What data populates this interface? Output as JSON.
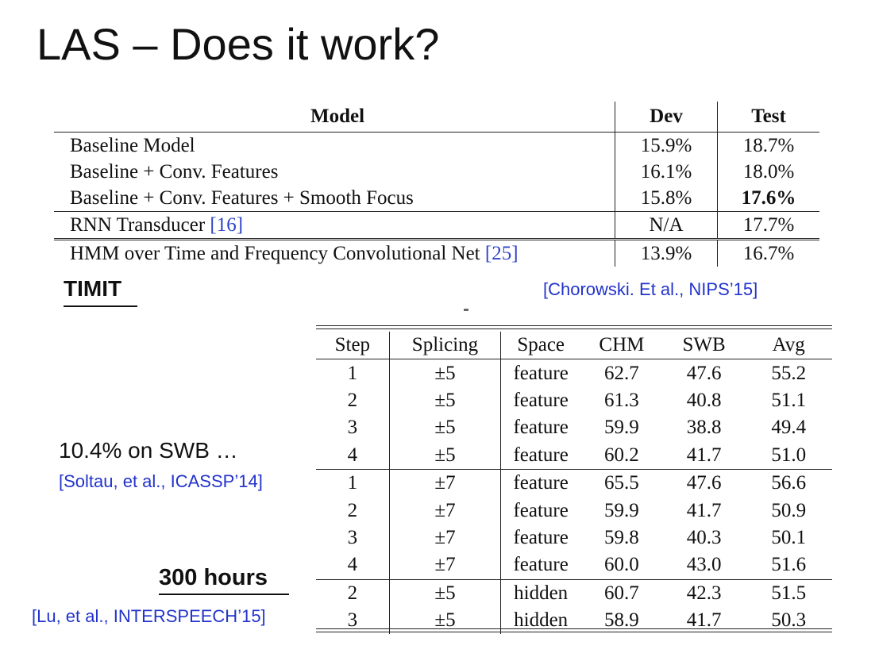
{
  "slide": {
    "title": "LAS – Does it work?"
  },
  "timit": {
    "label": "TIMIT",
    "citation": "[Chorowski. Et al., NIPS’15]",
    "headers": {
      "model": "Model",
      "dev": "Dev",
      "test": "Test"
    },
    "rows": [
      {
        "model": "Baseline Model",
        "ref": "",
        "dev": "15.9%",
        "test": "18.7%"
      },
      {
        "model": "Baseline + Conv. Features",
        "ref": "",
        "dev": "16.1%",
        "test": "18.0%"
      },
      {
        "model": "Baseline + Conv. Features + Smooth Focus",
        "ref": "",
        "dev": "15.8%",
        "test": "17.6%"
      },
      {
        "model": "RNN Transducer ",
        "ref": "[16]",
        "dev": "N/A",
        "test": "17.7%"
      },
      {
        "model": "HMM over Time and Frequency Convolutional Net ",
        "ref": "[25]",
        "dev": "13.9%",
        "test": "16.7%"
      }
    ]
  },
  "swb": {
    "note": "10.4% on SWB …",
    "citation_soltau": "[Soltau, et al., ICASSP’14]",
    "hours_label": "300 hours",
    "citation_lu": "[Lu, et al., INTERSPEECH’15]",
    "headers": {
      "step": "Step",
      "splicing": "Splicing",
      "space": "Space",
      "chm": "CHM",
      "swb": "SWB",
      "avg": "Avg"
    },
    "rows": [
      {
        "step": "1",
        "splicing": "±5",
        "space": "feature",
        "chm": "62.7",
        "swb": "47.6",
        "avg": "55.2"
      },
      {
        "step": "2",
        "splicing": "±5",
        "space": "feature",
        "chm": "61.3",
        "swb": "40.8",
        "avg": "51.1"
      },
      {
        "step": "3",
        "splicing": "±5",
        "space": "feature",
        "chm": "59.9",
        "swb": "38.8",
        "avg": "49.4"
      },
      {
        "step": "4",
        "splicing": "±5",
        "space": "feature",
        "chm": "60.2",
        "swb": "41.7",
        "avg": "51.0"
      },
      {
        "step": "1",
        "splicing": "±7",
        "space": "feature",
        "chm": "65.5",
        "swb": "47.6",
        "avg": "56.6"
      },
      {
        "step": "2",
        "splicing": "±7",
        "space": "feature",
        "chm": "59.9",
        "swb": "41.7",
        "avg": "50.9"
      },
      {
        "step": "3",
        "splicing": "±7",
        "space": "feature",
        "chm": "59.8",
        "swb": "40.3",
        "avg": "50.1"
      },
      {
        "step": "4",
        "splicing": "±7",
        "space": "feature",
        "chm": "60.0",
        "swb": "43.0",
        "avg": "51.6"
      },
      {
        "step": "2",
        "splicing": "±5",
        "space": "hidden",
        "chm": "60.7",
        "swb": "42.3",
        "avg": "51.5"
      },
      {
        "step": "3",
        "splicing": "±5",
        "space": "hidden",
        "chm": "58.9",
        "swb": "41.7",
        "avg": "50.3"
      }
    ]
  }
}
